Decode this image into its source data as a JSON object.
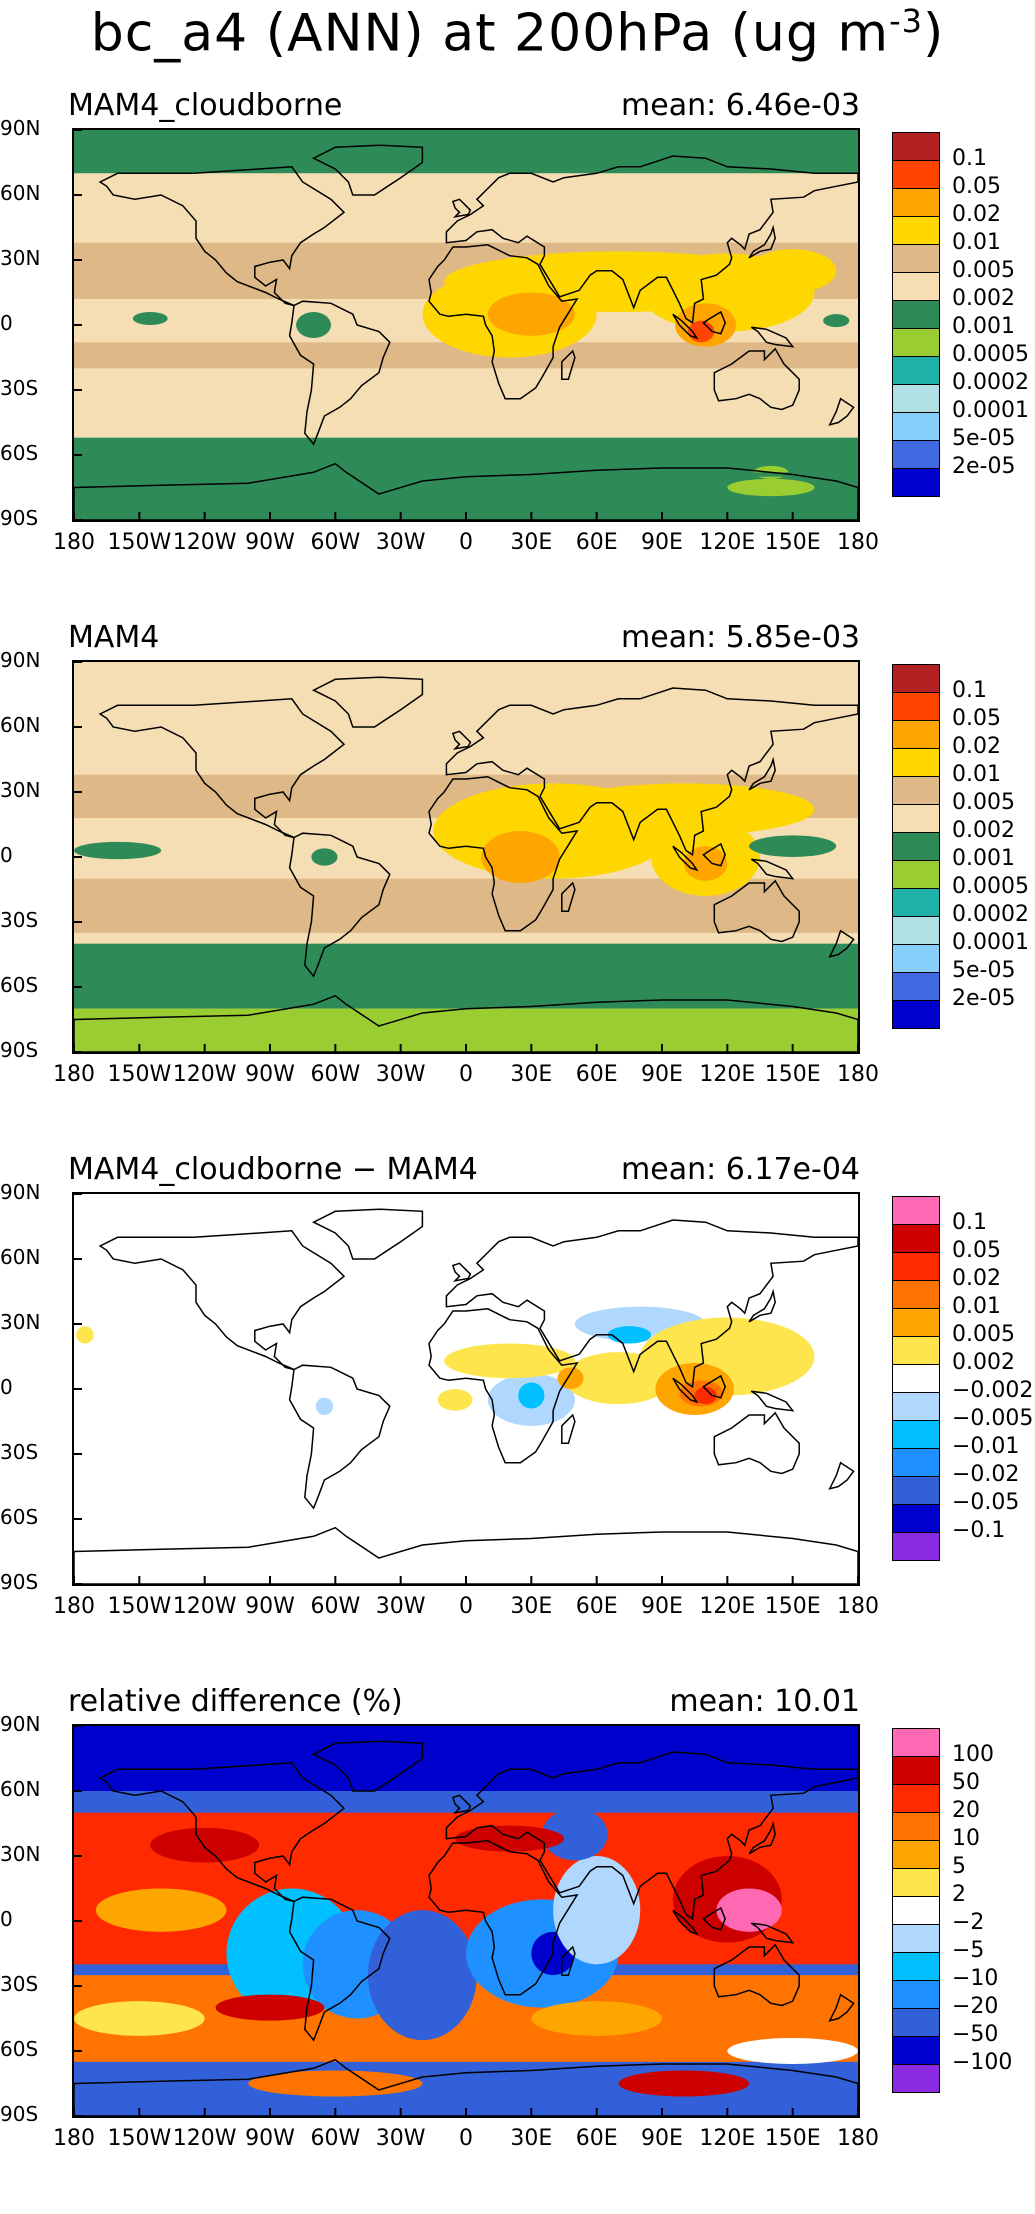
{
  "title": {
    "text": "bc_a4 (ANN) at 200hPa (ug m",
    "sup": "-3",
    "close": ")"
  },
  "lat_ticks": [
    "90N",
    "60N",
    "30N",
    "0",
    "30S",
    "60S",
    "90S"
  ],
  "lon_ticks": [
    "180",
    "150W",
    "120W",
    "90W",
    "60W",
    "30W",
    "0",
    "30E",
    "60E",
    "90E",
    "120E",
    "150E",
    "180"
  ],
  "panels": [
    {
      "left_label": "MAM4_cloudborne",
      "right_label": "mean: 6.46e-03",
      "colors": [
        "#b22222",
        "#ff4500",
        "#ffa500",
        "#ffd700",
        "#deb887",
        "#f5deb3",
        "#2e8b57",
        "#9acd32",
        "#20b2aa",
        "#b0e0e6",
        "#87cefa",
        "#4169e1",
        "#0000cd"
      ],
      "levels": [
        "0.1",
        "0.05",
        "0.02",
        "0.01",
        "0.005",
        "0.002",
        "0.001",
        "0.0005",
        "0.0002",
        "0.0001",
        "5e-05",
        "2e-05"
      ]
    },
    {
      "left_label": "MAM4",
      "right_label": "mean: 5.85e-03",
      "colors": [
        "#b22222",
        "#ff4500",
        "#ffa500",
        "#ffd700",
        "#deb887",
        "#f5deb3",
        "#2e8b57",
        "#9acd32",
        "#20b2aa",
        "#b0e0e6",
        "#87cefa",
        "#4169e1",
        "#0000cd"
      ],
      "levels": [
        "0.1",
        "0.05",
        "0.02",
        "0.01",
        "0.005",
        "0.002",
        "0.001",
        "0.0005",
        "0.0002",
        "0.0001",
        "5e-05",
        "2e-05"
      ]
    },
    {
      "left_label": "MAM4_cloudborne − MAM4",
      "right_label": "mean: 6.17e-04",
      "colors": [
        "#ff69b4",
        "#cd0000",
        "#ff2a00",
        "#ff7400",
        "#ffa500",
        "#ffe54d",
        "#ffffff",
        "#b0d8ff",
        "#00c0ff",
        "#1e90ff",
        "#3160d8",
        "#0000cd",
        "#8a2be2"
      ],
      "levels": [
        "0.1",
        "0.05",
        "0.02",
        "0.01",
        "0.005",
        "0.002",
        "−0.002",
        "−0.005",
        "−0.01",
        "−0.02",
        "−0.05",
        "−0.1"
      ]
    },
    {
      "left_label": "relative difference (%)",
      "right_label": "mean: 10.01",
      "colors": [
        "#ff69b4",
        "#cd0000",
        "#ff2a00",
        "#ff7400",
        "#ffa500",
        "#ffe54d",
        "#ffffff",
        "#b0d8ff",
        "#00c0ff",
        "#1e90ff",
        "#3160d8",
        "#0000cd",
        "#8a2be2"
      ],
      "levels": [
        "100",
        "50",
        "20",
        "10",
        "5",
        "2",
        "−2",
        "−5",
        "−10",
        "−20",
        "−50",
        "−100"
      ]
    }
  ]
}
